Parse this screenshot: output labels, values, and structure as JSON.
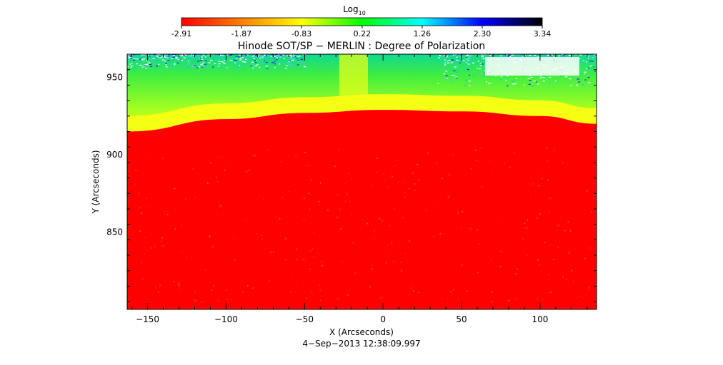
{
  "colorbar": {
    "label_main": "Log",
    "label_sub": "10",
    "ticks": [
      -2.91,
      -1.87,
      -0.83,
      0.22,
      1.26,
      2.3,
      3.34
    ],
    "tick_labels": [
      "-2.91",
      "-1.87",
      "-0.83",
      "0.22",
      "1.26",
      "2.30",
      "3.34"
    ],
    "range": [
      -2.91,
      3.34
    ],
    "colors": [
      "#ff0000",
      "#ff7f00",
      "#ffff00",
      "#00ff00",
      "#00ffff",
      "#0000ff",
      "#000000"
    ]
  },
  "chart_data": {
    "type": "heatmap",
    "title": "Hinode SOT/SP − MERLIN : Degree of Polarization",
    "xlabel": "X (Arcseconds)",
    "ylabel": "Y (Arcseconds)",
    "xlim": [
      -163,
      136
    ],
    "ylim": [
      800,
      965
    ],
    "x_ticks": [
      -150,
      -100,
      -50,
      0,
      50,
      100
    ],
    "x_tick_labels": [
      "−150",
      "−100",
      "−50",
      "0",
      "50",
      "100"
    ],
    "y_ticks": [
      850,
      900,
      950
    ],
    "y_tick_labels": [
      "850",
      "900",
      "950"
    ],
    "limb_y": [
      {
        "x": -163,
        "y": 915
      },
      {
        "x": -100,
        "y": 923
      },
      {
        "x": -50,
        "y": 927
      },
      {
        "x": 0,
        "y": 929
      },
      {
        "x": 50,
        "y": 928
      },
      {
        "x": 100,
        "y": 925
      },
      {
        "x": 136,
        "y": 920
      }
    ],
    "colors": {
      "disk": "#ff0000",
      "limb_band": "#f6ff10",
      "off_limb_low": "#c4ff1c",
      "off_limb_high": "#20e060",
      "noise": "#1a1aff"
    }
  },
  "footer": {
    "timestamp": "4−Sep−2013 12:38:09.997"
  }
}
